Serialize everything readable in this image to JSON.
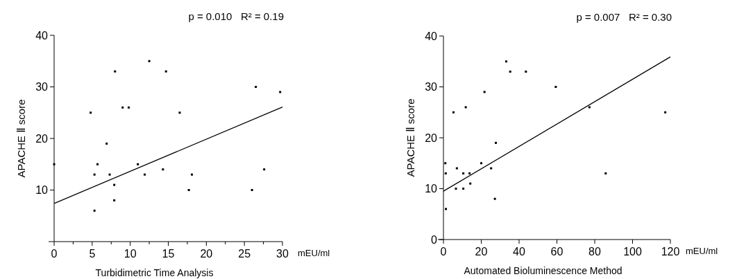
{
  "chart_data": [
    {
      "type": "scatter",
      "xlabel": "Turbidimetric Time Analysis",
      "ylabel": "APACHE Ⅱ score",
      "annotations": [
        "p = 0.010   R² = 0.19",
        "mEU/ml"
      ],
      "xlim": [
        0,
        30
      ],
      "ylim": [
        0,
        40
      ],
      "xticks": [
        0,
        {
          "value": 2.5,
          "label": null
        },
        5,
        {
          "value": 7.5,
          "label": null
        },
        10,
        {
          "value": 12.5,
          "label": null
        },
        15,
        {
          "value": 17.5,
          "label": null
        },
        20,
        {
          "value": 22.5,
          "label": null
        },
        25,
        {
          "value": 27.5,
          "label": null
        },
        30
      ],
      "yticks": [
        10,
        20,
        30,
        40
      ],
      "grid": false,
      "series": [
        {
          "marker": "square",
          "color": "#000000",
          "x": [
            0,
            4.8,
            5.3,
            5.3,
            5.7,
            6.9,
            7.3,
            7.9,
            7.9,
            8.0,
            9.0,
            9.8,
            11.0,
            11.9,
            12.5,
            14.3,
            14.7,
            16.5,
            17.7,
            18.1,
            26.0,
            26.5,
            27.6,
            29.7
          ],
          "values": [
            15,
            25,
            13,
            6,
            15,
            19,
            13,
            11,
            8,
            33,
            26,
            26,
            15,
            13,
            35,
            14,
            33,
            25,
            10,
            13,
            10,
            30,
            14,
            29
          ]
        },
        {
          "type": "line",
          "color": "#000000",
          "x": [
            0,
            30
          ],
          "values": [
            7.4,
            26.1
          ]
        }
      ]
    },
    {
      "type": "scatter",
      "xlabel": "Automated Bioluminescence Method",
      "ylabel": "APACHE Ⅱ score",
      "annotations": [
        "p = 0.007   R² = 0.30",
        "mEU/ml"
      ],
      "xlim": [
        0,
        120
      ],
      "ylim": [
        0,
        40
      ],
      "xticks": [
        0,
        20,
        40,
        60,
        80,
        100,
        120
      ],
      "yticks": [
        0,
        10,
        20,
        30,
        40
      ],
      "grid": false,
      "series": [
        {
          "marker": "square",
          "color": "#000000",
          "x": [
            1,
            1.2,
            1.3,
            5.3,
            7.1,
            6.6,
            10.5,
            10.5,
            11.8,
            13.8,
            14.2,
            20,
            21.7,
            25.2,
            27.2,
            27.7,
            33.2,
            35.3,
            43.6,
            59.4,
            77.2,
            85.8,
            117.3
          ],
          "values": [
            15,
            13,
            6,
            25,
            14,
            10,
            13,
            10,
            26,
            13,
            11,
            15,
            29,
            14,
            8,
            19,
            35,
            33,
            33,
            30,
            26,
            13,
            25
          ]
        },
        {
          "type": "line",
          "color": "#000000",
          "x": [
            0,
            120
          ],
          "values": [
            9.5,
            35.9
          ]
        }
      ]
    }
  ]
}
